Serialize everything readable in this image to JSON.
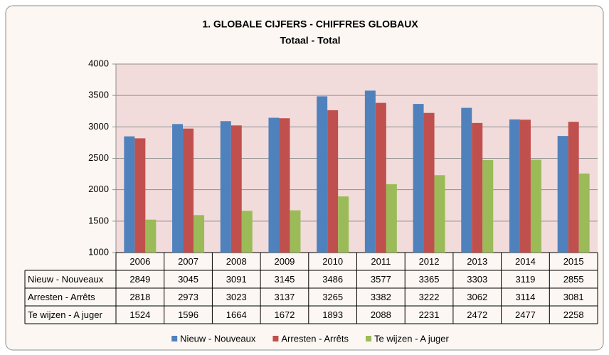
{
  "chart_data": {
    "type": "bar",
    "title": "1. GLOBALE CIJFERS - CHIFFRES GLOBAUX",
    "subtitle": "Totaal - Total",
    "categories": [
      "2006",
      "2007",
      "2008",
      "2009",
      "2010",
      "2011",
      "2012",
      "2013",
      "2014",
      "2015"
    ],
    "series": [
      {
        "name": "Nieuw - Nouveaux",
        "color": "#4f81bd",
        "values": [
          2849,
          3045,
          3091,
          3145,
          3486,
          3577,
          3365,
          3303,
          3119,
          2855
        ]
      },
      {
        "name": "Arresten - Arrêts",
        "color": "#c0504d",
        "values": [
          2818,
          2973,
          3023,
          3137,
          3265,
          3382,
          3222,
          3062,
          3114,
          3081
        ]
      },
      {
        "name": "Te wijzen - A juger",
        "color": "#9bbb59",
        "values": [
          1524,
          1596,
          1664,
          1672,
          1893,
          2088,
          2231,
          2472,
          2477,
          2258
        ]
      }
    ],
    "ylim": [
      1000,
      4000
    ],
    "yticks": [
      1000,
      1500,
      2000,
      2500,
      3000,
      3500,
      4000
    ],
    "grid": true
  }
}
